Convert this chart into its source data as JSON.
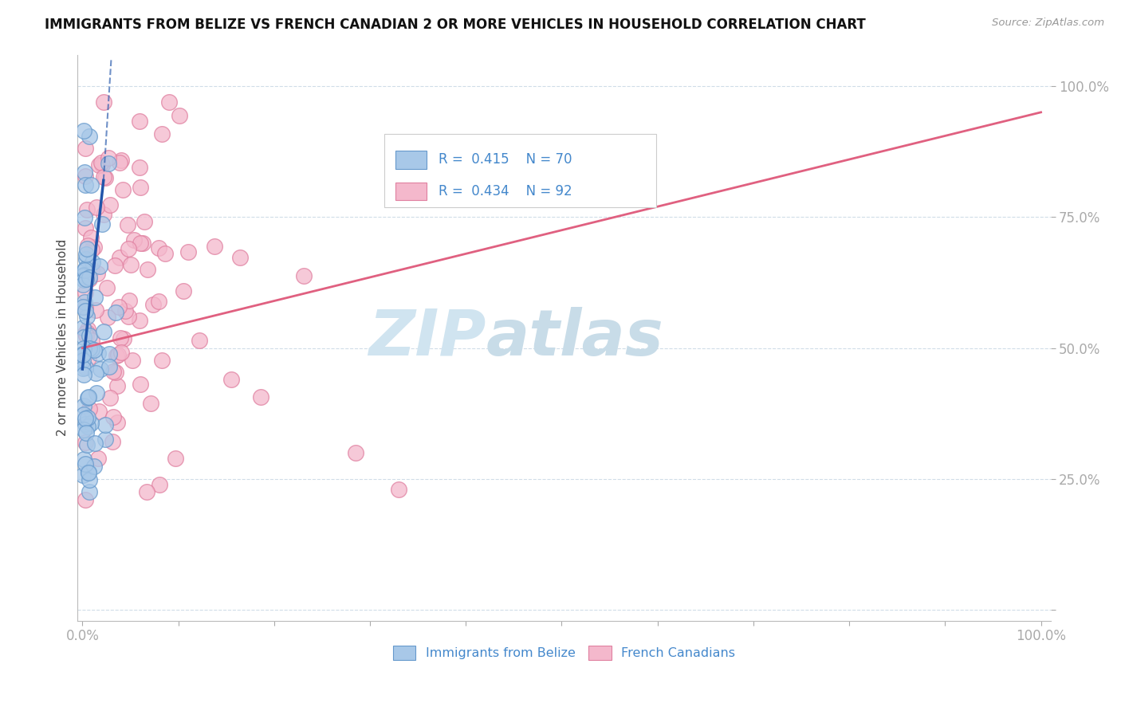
{
  "title": "IMMIGRANTS FROM BELIZE VS FRENCH CANADIAN 2 OR MORE VEHICLES IN HOUSEHOLD CORRELATION CHART",
  "source": "Source: ZipAtlas.com",
  "ylabel": "2 or more Vehicles in Household",
  "footer_label1": "Immigrants from Belize",
  "footer_label2": "French Canadians",
  "legend_R_values": [
    "0.415",
    "0.434"
  ],
  "legend_N_values": [
    "70",
    "92"
  ],
  "blue_fill": "#a8c8e8",
  "blue_edge": "#6699cc",
  "blue_line": "#2255aa",
  "pink_fill": "#f4b8cc",
  "pink_edge": "#e080a0",
  "pink_line": "#e06080",
  "watermark_zip_color": "#d0e4f0",
  "watermark_atlas_color": "#c8dce8",
  "grid_color": "#d0dde8",
  "title_color": "#111111",
  "tick_color": "#4488cc",
  "source_color": "#999999",
  "ylabel_color": "#444444",
  "legend_border_color": "#cccccc",
  "seed": 42
}
